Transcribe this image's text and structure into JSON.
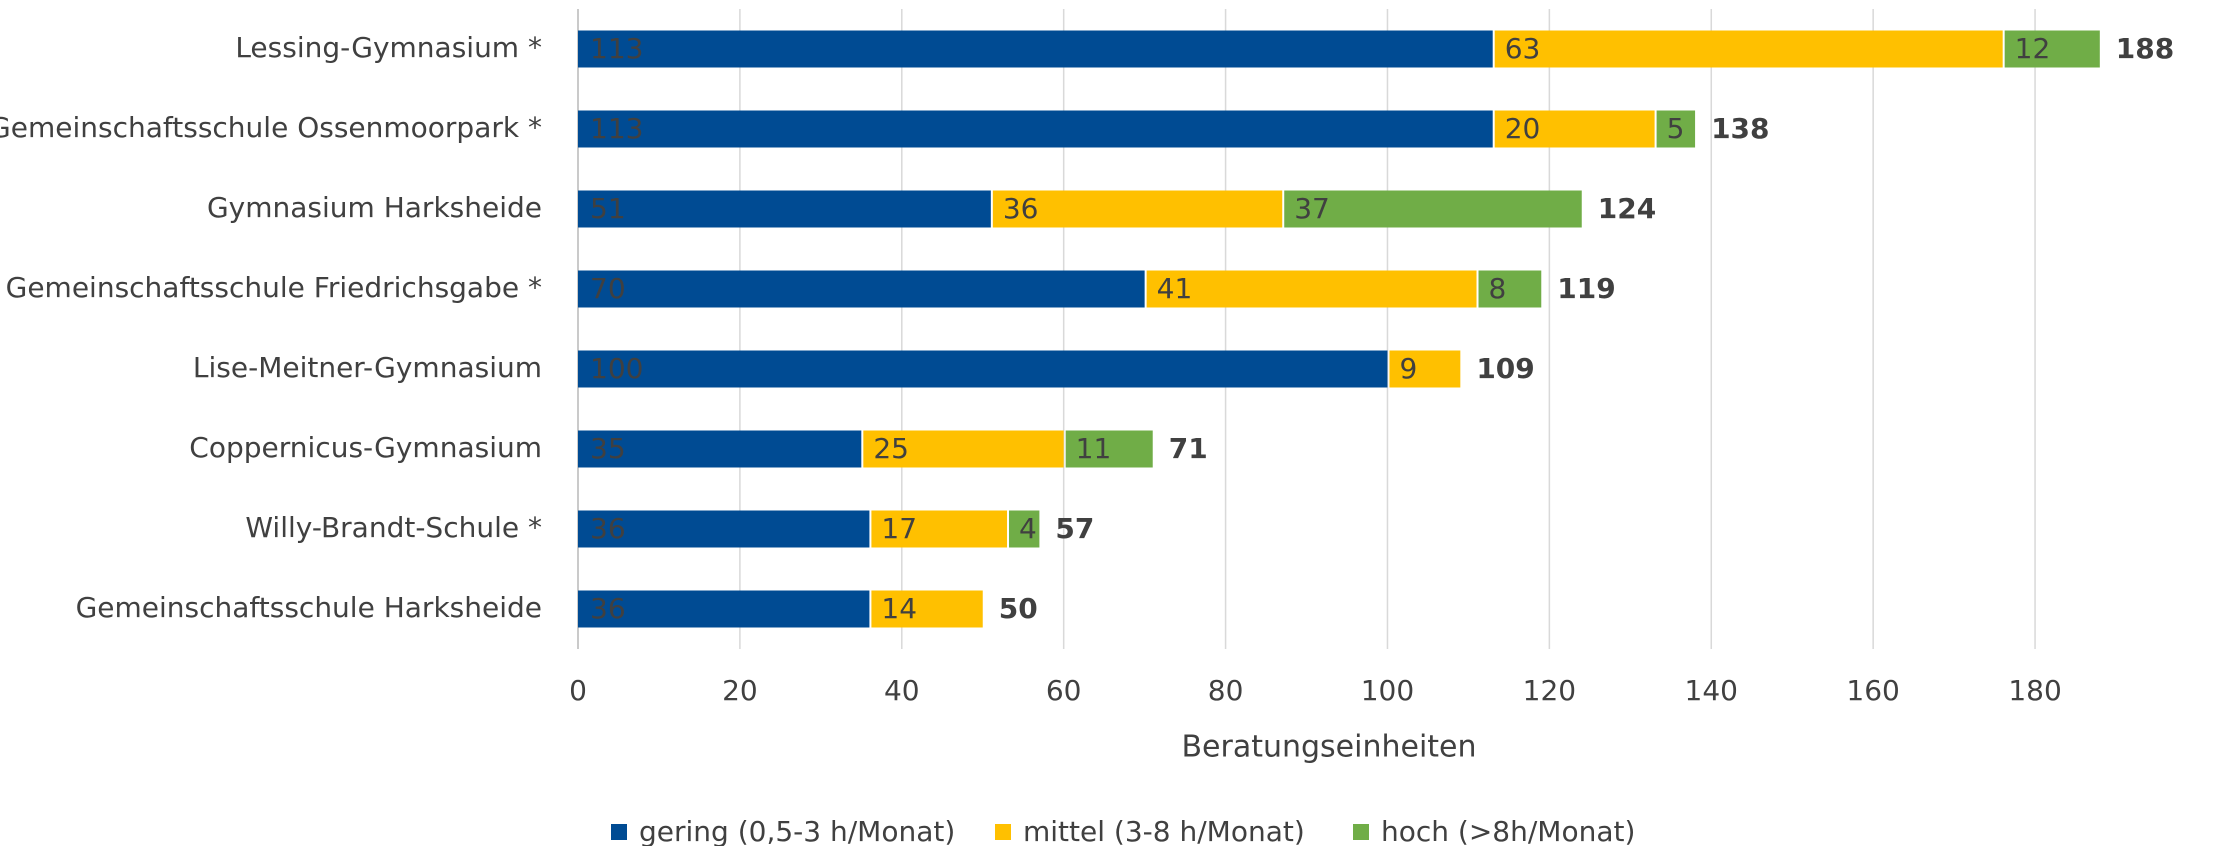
{
  "chart_data": {
    "type": "stacked-barh",
    "categories": [
      "Lessing-Gymnasium *",
      "Gemeinschaftsschule Ossenmoorpark *",
      "Gymnasium Harksheide",
      "Gemeinschaftsschule Friedrichsgabe *",
      "Lise-Meitner-Gymnasium",
      "Coppernicus-Gymnasium",
      "Willy-Brandt-Schule *",
      "Gemeinschaftsschule Harksheide"
    ],
    "series": [
      {
        "name": "gering (0,5-3 h/Monat)",
        "color": "#004b93",
        "values": [
          113,
          113,
          51,
          70,
          100,
          35,
          36,
          36
        ]
      },
      {
        "name": "mittel (3-8 h/Monat)",
        "color": "#ffc000",
        "values": [
          63,
          20,
          36,
          41,
          9,
          25,
          17,
          14
        ]
      },
      {
        "name": "hoch (>8h/Monat)",
        "color": "#70ad47",
        "values": [
          12,
          5,
          37,
          8,
          null,
          11,
          4,
          null
        ]
      }
    ],
    "totals": [
      188,
      138,
      124,
      119,
      109,
      71,
      57,
      50
    ],
    "xlabel": "Beratungseinheiten",
    "xlim": [
      0,
      190
    ],
    "xticks": [
      0,
      20,
      40,
      60,
      80,
      100,
      120,
      140,
      160,
      180
    ],
    "grid": true,
    "legend": "bottom"
  }
}
